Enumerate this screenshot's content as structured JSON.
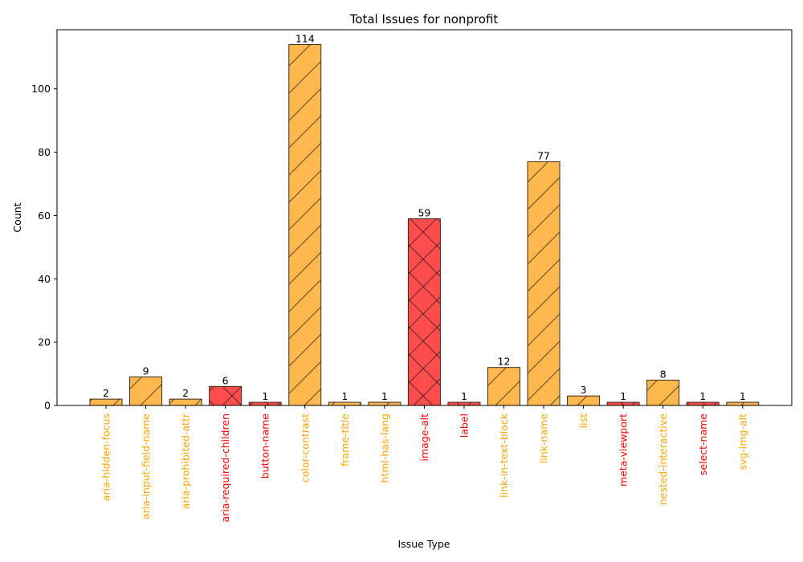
{
  "chart_data": {
    "type": "bar",
    "title": "Total Issues for nonprofit",
    "xlabel": "Issue Type",
    "ylabel": "Count",
    "ylim": [
      0,
      118.7
    ],
    "yticks": [
      0,
      20,
      40,
      60,
      80,
      100
    ],
    "grid": false,
    "legend": "none",
    "categories": [
      "aria-hidden-focus",
      "aria-input-field-name",
      "aria-prohibited-attr",
      "aria-required-children",
      "button-name",
      "color-contrast",
      "frame-title",
      "html-has-lang",
      "image-alt",
      "label",
      "link-in-text-block",
      "link-name",
      "list",
      "meta-viewport",
      "nested-interactive",
      "select-name",
      "svg-img-alt"
    ],
    "values": [
      2,
      9,
      2,
      6,
      1,
      114,
      1,
      1,
      59,
      1,
      12,
      77,
      3,
      1,
      8,
      1,
      1
    ],
    "severity": [
      "serious",
      "serious",
      "serious",
      "critical",
      "critical",
      "serious",
      "serious",
      "serious",
      "critical",
      "critical",
      "serious",
      "serious",
      "serious",
      "critical",
      "serious",
      "critical",
      "serious"
    ],
    "colors": {
      "serious": "#FFB84D",
      "critical": "#FF4D4D",
      "serious_label": "#FFA500",
      "critical_label": "#FF0000",
      "edge": "#3a2a1a"
    }
  }
}
